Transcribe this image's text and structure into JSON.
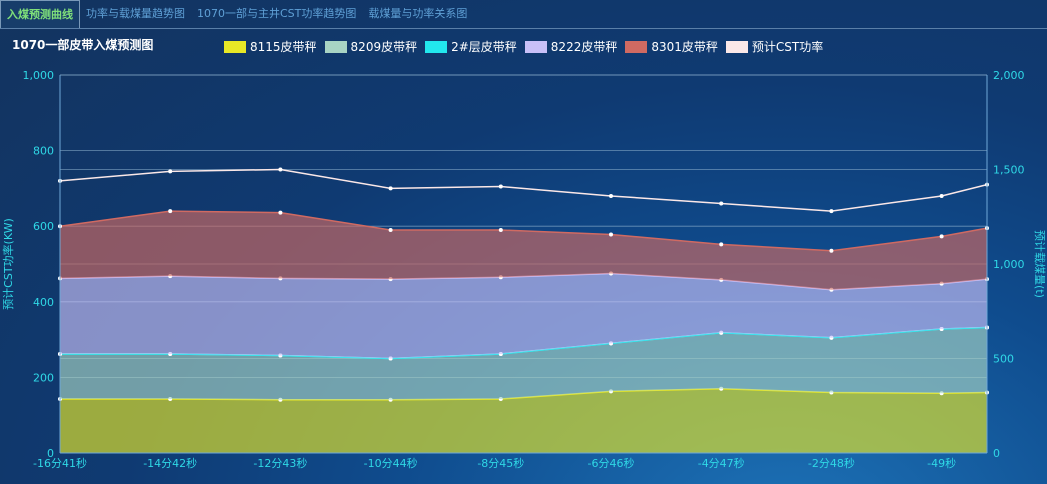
{
  "tabs": [
    "入煤预测曲线",
    "功率与载煤量趋势图",
    "1070一部与主井CST功率趋势图",
    "载煤量与功率关系图"
  ],
  "title": "1070一部皮带入煤预测图",
  "chart_data": {
    "type": "area",
    "stacked": true,
    "x_seconds": [
      -1001,
      -882,
      -763,
      -644,
      -525,
      -406,
      -287,
      -168,
      -49,
      0
    ],
    "categories": [
      "-16分41秒",
      "-14分42秒",
      "-12分43秒",
      "-10分44秒",
      "-8分45秒",
      "-6分46秒",
      "-4分47秒",
      "-2分48秒",
      "-49秒",
      ""
    ],
    "ylabel_left": "预计CST功率(KW)",
    "ylim_left": [
      0,
      1000
    ],
    "yticks_left": [
      "0",
      "200",
      "400",
      "600",
      "800",
      "1,000"
    ],
    "ylabel_right": "预计载煤量(t)",
    "ylim_right": [
      0,
      2000
    ],
    "yticks_right": [
      "0",
      "500",
      "1,000",
      "1,500",
      "2,000"
    ],
    "legend_position": "top",
    "grid": true,
    "series": [
      {
        "name": "8115皮带秤",
        "color": "#e8e826",
        "axis": "right",
        "values": [
          286,
          286,
          282,
          282,
          286,
          326,
          340,
          320,
          316,
          320
        ]
      },
      {
        "name": "8209皮带秤",
        "color": "#a8d4c4",
        "axis": "right",
        "values": [
          238,
          238,
          234,
          218,
          238,
          254,
          296,
          290,
          340,
          344
        ]
      },
      {
        "name": "2#层皮带秤",
        "color": "#22e8ee",
        "axis": "right",
        "values": [
          0,
          0,
          0,
          0,
          0,
          0,
          0,
          0,
          0,
          0
        ]
      },
      {
        "name": "8222皮带秤",
        "color": "#c8c0f8",
        "axis": "right",
        "values": [
          400,
          412,
          408,
          420,
          406,
          370,
          280,
          254,
          240,
          256
        ]
      },
      {
        "name": "8301皮带秤",
        "color": "#d06a62",
        "axis": "right",
        "values": [
          276,
          344,
          348,
          260,
          250,
          206,
          188,
          206,
          250,
          270
        ]
      },
      {
        "name": "预计CST功率",
        "color": "#fbe8e8",
        "axis": "left",
        "type": "line",
        "values": [
          720,
          745,
          750,
          700,
          705,
          680,
          660,
          640,
          680,
          710
        ]
      }
    ]
  }
}
